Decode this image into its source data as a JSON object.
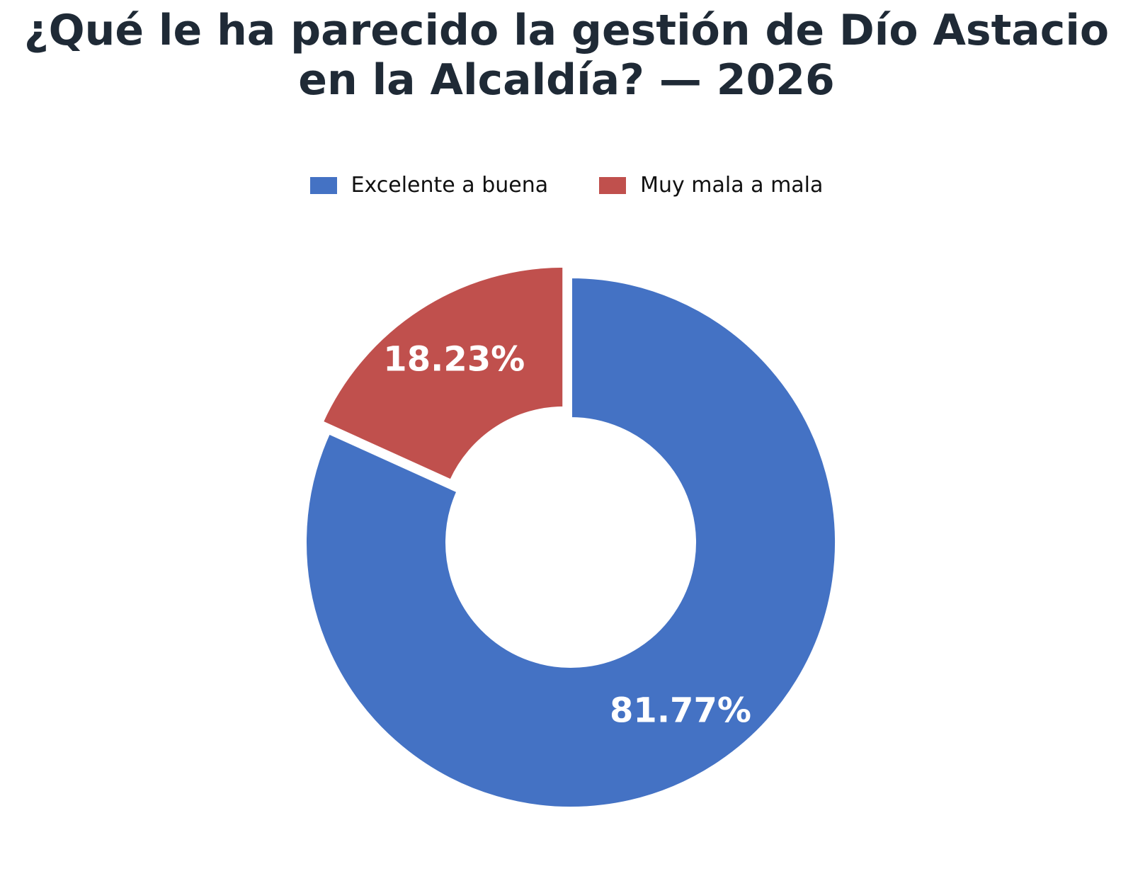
{
  "chart_data": {
    "type": "pie",
    "variant": "donut",
    "title_lines": [
      "¿Qué le ha parecido la gestión de Dío Astacio",
      "en la Alcaldía? — 2026"
    ],
    "legend_position": "top-center",
    "series": [
      {
        "name": "Excelente a buena",
        "value": 81.77,
        "label": "81.77%",
        "color": "#4472c4"
      },
      {
        "name": "Muy mala a mala",
        "value": 18.23,
        "label": "18.23%",
        "color": "#c0504d"
      }
    ]
  }
}
